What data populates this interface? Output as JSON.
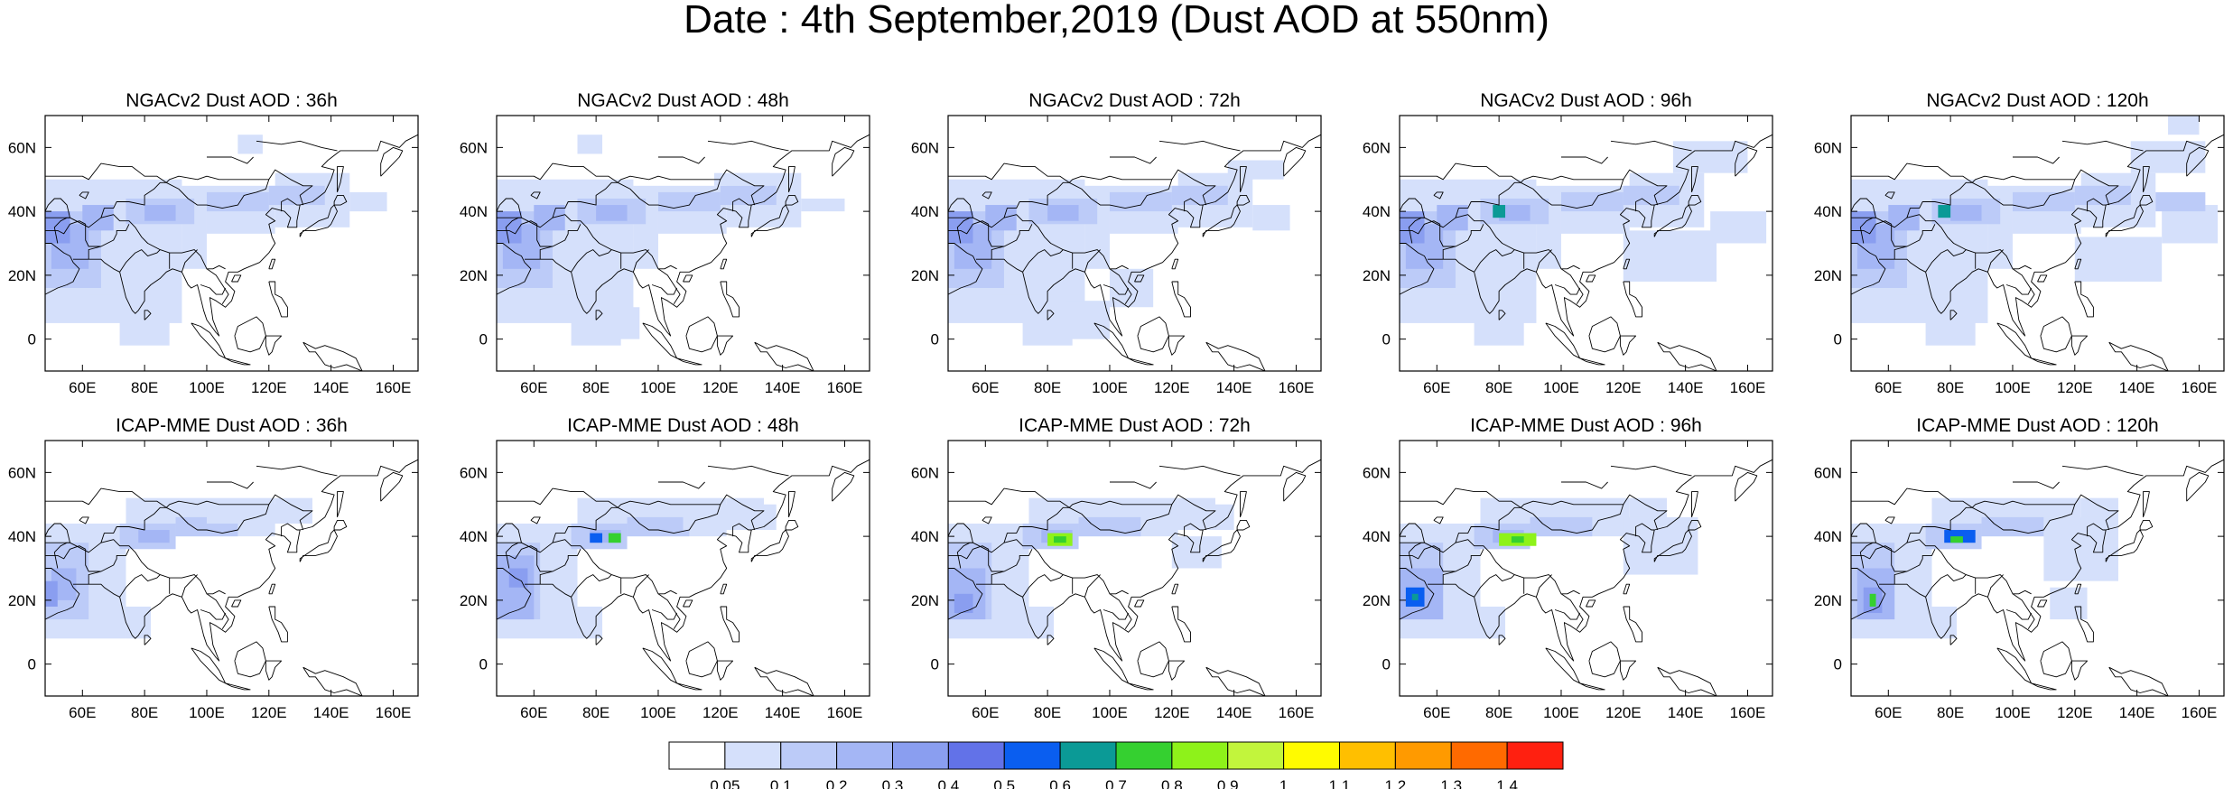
{
  "title": "Date : 4th September,2019 (Dust AOD at 550nm)",
  "panels": [
    {
      "title": "NGACv2 Dust AOD : 36h",
      "model": "NGACv2",
      "lead": "36h"
    },
    {
      "title": "NGACv2 Dust AOD : 48h",
      "model": "NGACv2",
      "lead": "48h"
    },
    {
      "title": "NGACv2 Dust AOD : 72h",
      "model": "NGACv2",
      "lead": "72h"
    },
    {
      "title": "NGACv2 Dust AOD : 96h",
      "model": "NGACv2",
      "lead": "96h"
    },
    {
      "title": "NGACv2 Dust AOD : 120h",
      "model": "NGACv2",
      "lead": "120h"
    },
    {
      "title": "ICAP-MME Dust AOD : 36h",
      "model": "ICAP-MME",
      "lead": "36h"
    },
    {
      "title": "ICAP-MME Dust AOD : 48h",
      "model": "ICAP-MME",
      "lead": "48h"
    },
    {
      "title": "ICAP-MME Dust AOD : 72h",
      "model": "ICAP-MME",
      "lead": "72h"
    },
    {
      "title": "ICAP-MME Dust AOD : 96h",
      "model": "ICAP-MME",
      "lead": "96h"
    },
    {
      "title": "ICAP-MME Dust AOD : 120h",
      "model": "ICAP-MME",
      "lead": "120h"
    }
  ],
  "axes": {
    "lon_range": [
      48,
      168
    ],
    "lat_range": [
      -10,
      70
    ],
    "x_ticks": [
      {
        "value": 60,
        "label": "60E"
      },
      {
        "value": 80,
        "label": "80E"
      },
      {
        "value": 100,
        "label": "100E"
      },
      {
        "value": 120,
        "label": "120E"
      },
      {
        "value": 140,
        "label": "140E"
      },
      {
        "value": 160,
        "label": "160E"
      }
    ],
    "y_ticks": [
      {
        "value": 0,
        "label": "0"
      },
      {
        "value": 20,
        "label": "20N"
      },
      {
        "value": 40,
        "label": "40N"
      },
      {
        "value": 60,
        "label": "60N"
      }
    ]
  },
  "colorbar": {
    "labels": [
      "0.05",
      "0.1",
      "0.2",
      "0.3",
      "0.4",
      "0.5",
      "0.6",
      "0.7",
      "0.8",
      "0.9",
      "1",
      "1.1",
      "1.2",
      "1.3",
      "1.4"
    ],
    "colors": [
      "#ffffff",
      "#d5e0fb",
      "#bccbf8",
      "#a4b6f5",
      "#8a9ef0",
      "#6272e8",
      "#0a5ef0",
      "#0b9a96",
      "#35d030",
      "#8ef21a",
      "#c2f53c",
      "#fffb00",
      "#ffbf00",
      "#ff9a00",
      "#ff6a00",
      "#ff2010"
    ]
  },
  "dust_colors": {
    "c1": "#d5e0fb",
    "c2": "#bccbf8",
    "c3": "#a4b6f5",
    "c4": "#8a9ef0",
    "c6": "#0a5ef0",
    "c7": "#0b9a96",
    "c8": "#35d030",
    "c9": "#8ef21a"
  }
}
